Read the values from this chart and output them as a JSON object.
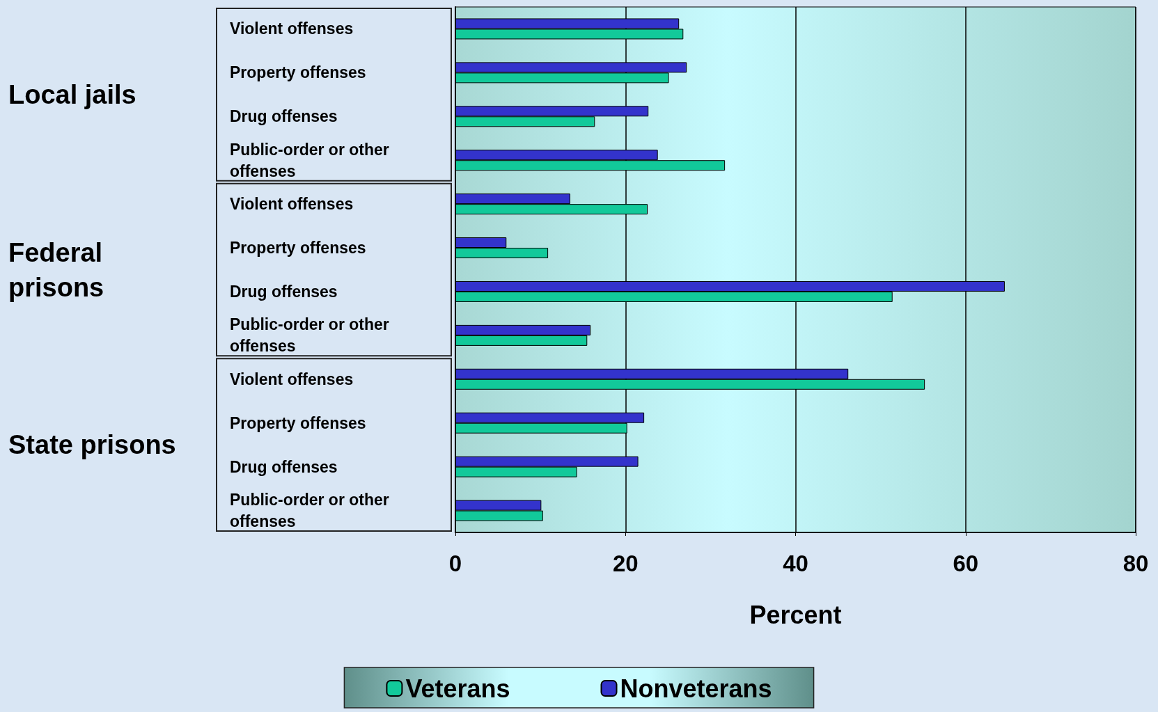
{
  "chart_data": {
    "type": "bar",
    "orientation": "horizontal",
    "xlabel": "Percent",
    "categories": [
      "Violent offenses",
      "Property offenses",
      "Drug offenses",
      "Public-order or other offenses",
      "Violent offenses",
      "Property offenses",
      "Drug offenses",
      "Public-order or other offenses",
      "Violent offenses",
      "Property offenses",
      "Drug offenses",
      "Public-order or other offenses"
    ],
    "series": [
      {
        "name": "Veterans",
        "color": "#12c99a",
        "values": [
          26.8,
          25.1,
          16.4,
          31.7,
          22.6,
          10.9,
          51.4,
          15.5,
          55.2,
          20.2,
          14.3,
          10.3
        ]
      },
      {
        "name": "Nonveterans",
        "color": "#3333cc",
        "values": [
          26.3,
          27.2,
          22.7,
          23.8,
          13.5,
          6.0,
          64.6,
          15.9,
          46.2,
          22.2,
          21.5,
          10.1
        ]
      }
    ],
    "xlim": [
      0,
      80
    ],
    "xticks": [
      0,
      20,
      40,
      60,
      80
    ],
    "grid": "x",
    "legend": "bottom",
    "annotations": [
      "Local jails",
      "Federal prisons",
      "State prisons"
    ]
  }
}
